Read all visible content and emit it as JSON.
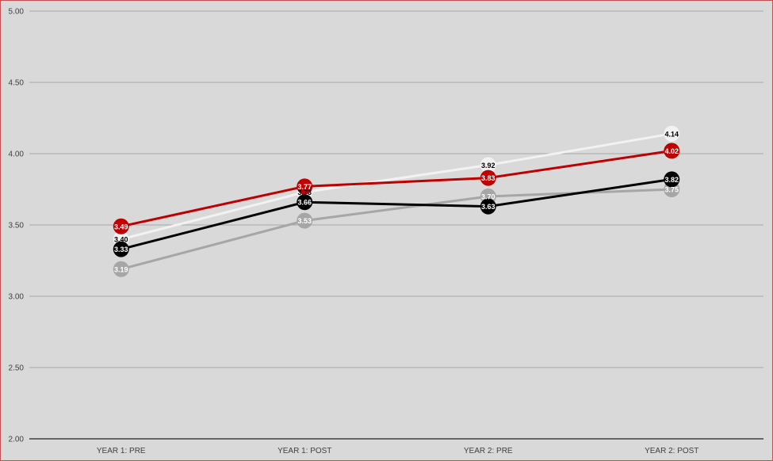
{
  "chart_data": {
    "type": "line",
    "title": "",
    "xlabel": "",
    "ylabel": "",
    "categories": [
      "YEAR 1: PRE",
      "YEAR 1: POST",
      "YEAR 2: PRE",
      "YEAR 2: POST"
    ],
    "ylim": [
      2.0,
      5.0
    ],
    "yticks": [
      "2.00",
      "2.50",
      "3.00",
      "3.50",
      "4.00",
      "4.50",
      "5.00"
    ],
    "grid": true,
    "legend": "none",
    "series": [
      {
        "color": "#a6a6a6",
        "label_color": "#ffffff",
        "values": [
          3.19,
          3.53,
          3.7,
          3.75
        ],
        "labels": [
          "3.19",
          "3.53",
          "3.70",
          "3.75"
        ]
      },
      {
        "color": "#f2f2f2",
        "label_color": "#000000",
        "values": [
          3.4,
          3.73,
          3.92,
          4.14
        ],
        "labels": [
          "3.40",
          "3.73",
          "3.92",
          "4.14"
        ]
      },
      {
        "color": "#c00000",
        "label_color": "#ffffff",
        "values": [
          3.49,
          3.77,
          3.83,
          4.02
        ],
        "labels": [
          "3.49",
          "3.77",
          "3.83",
          "4.02"
        ]
      },
      {
        "color": "#000000",
        "label_color": "#ffffff",
        "values": [
          3.33,
          3.66,
          3.63,
          3.82
        ],
        "labels": [
          "3.33",
          "3.66",
          "3.63",
          "3.82"
        ]
      }
    ]
  }
}
